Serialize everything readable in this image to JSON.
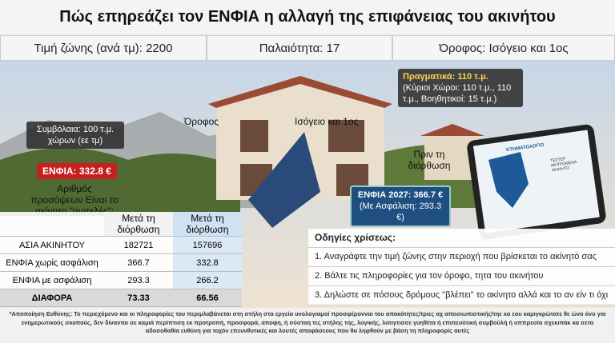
{
  "header": {
    "title": "Πώς επηρεάζει τον ΕΝΦΙΑ η αλλαγή της επιφάνειας του ακινήτου"
  },
  "info_bar": [
    "Τιμή ζώνης (ανά τμ): 2200",
    "Παλαιότητα: 17",
    "Όροφος: Ισόγειο και 1ος"
  ],
  "callouts": {
    "contracts": "Συμβόλαια: 100 τ.μ. χώρων (εε τμ)",
    "enfia_old": "ΕΝΦΙΑ: 332.8 €",
    "facades": "Αριθμός προσόψεων Είναι το ακίνητο \"ημιτελές\";",
    "floor": "Όροφος",
    "floor_value": "Ισόγειο και 1ος",
    "actual": "Πραγματικά: 110 τ.μ.",
    "actual_detail": "(Κύριοι Χώροι: 110 τ.μ., 110 τ.μ., Βοηθητικοί: 15 τ.μ.)",
    "before": "Πριν τη διόρθωση",
    "enfia_new": "ΕΝΦΙΑ 2027: 366.7 €",
    "enfia_new_ins": "(Με Ασφάλιση: 293.3 €)"
  },
  "tablet": {
    "brand": "ΚΤΗΜΑΤΟΛΟΓΙΟ",
    "screen": "ΤΕΣΤΕΡ ΜΗΤΡΩΜΕΝΑ ΑΚΙΝΗΤΟ"
  },
  "table": {
    "header": [
      "Μετά τη διόρθωση",
      "Μετά τη διόρθωση"
    ],
    "rows": [
      [
        "ΑΣΙΑ ΑΚΙΝΗΤΟΥ",
        182721,
        157696
      ],
      [
        "ΕΝΦΙΑ χωρίς ασφάλιση",
        366.7,
        332.8
      ],
      [
        "ΕΝΦΙΑ με ασφάλιση",
        293.3,
        266.2
      ],
      [
        "ΔΙΑΦΟΡΑ",
        73.33,
        66.56
      ]
    ]
  },
  "instructions": {
    "title": "Οδηγίες χρίσεως:",
    "items": [
      "1. Αναγράφτε την τιμή ζώνης στην περιοχή που βρίσκεται το ακίνητό σας",
      "2. Βάλτε τις πληροφορίες για τον όροφο, τητα του ακινήτου",
      "3. Δηλώστε σε πόσους δρόμους \"βλέπει\" το ακίνητο αλλά και το αν είν τι όχι"
    ]
  },
  "footer": {
    "disclaimer": "*Αποποίηση Ευθύνης: Το περιεχόμενο και οι πληροφορίες του περιμλαβάνεται στη στήλη στα εργεία υνολογιαμοί προσφέρονναι του αποκότητες/τριες αχ αποσιωπιστικής/τηε κα εου καμιγκρώτατε θε ώνο όνο για ενημερωτικούς σκοπούς, δεν δίνανται σε καμιά περίπτιση εκ προτροπή, προσφορά, αποψη, ή σύσταη τες στήλης της, λογικής, λοτιγτισσε γυηθέτα ή επιπευύτική συμβούλή ή υππρεσία σχεκιπάκ κα σετα αδοσοθαθία ευθύνη για τοχόν επευνθυτικές και λουτές αποφάσεους που θα ληφθούν με βάση τη πληροφορίς αυτές"
  }
}
